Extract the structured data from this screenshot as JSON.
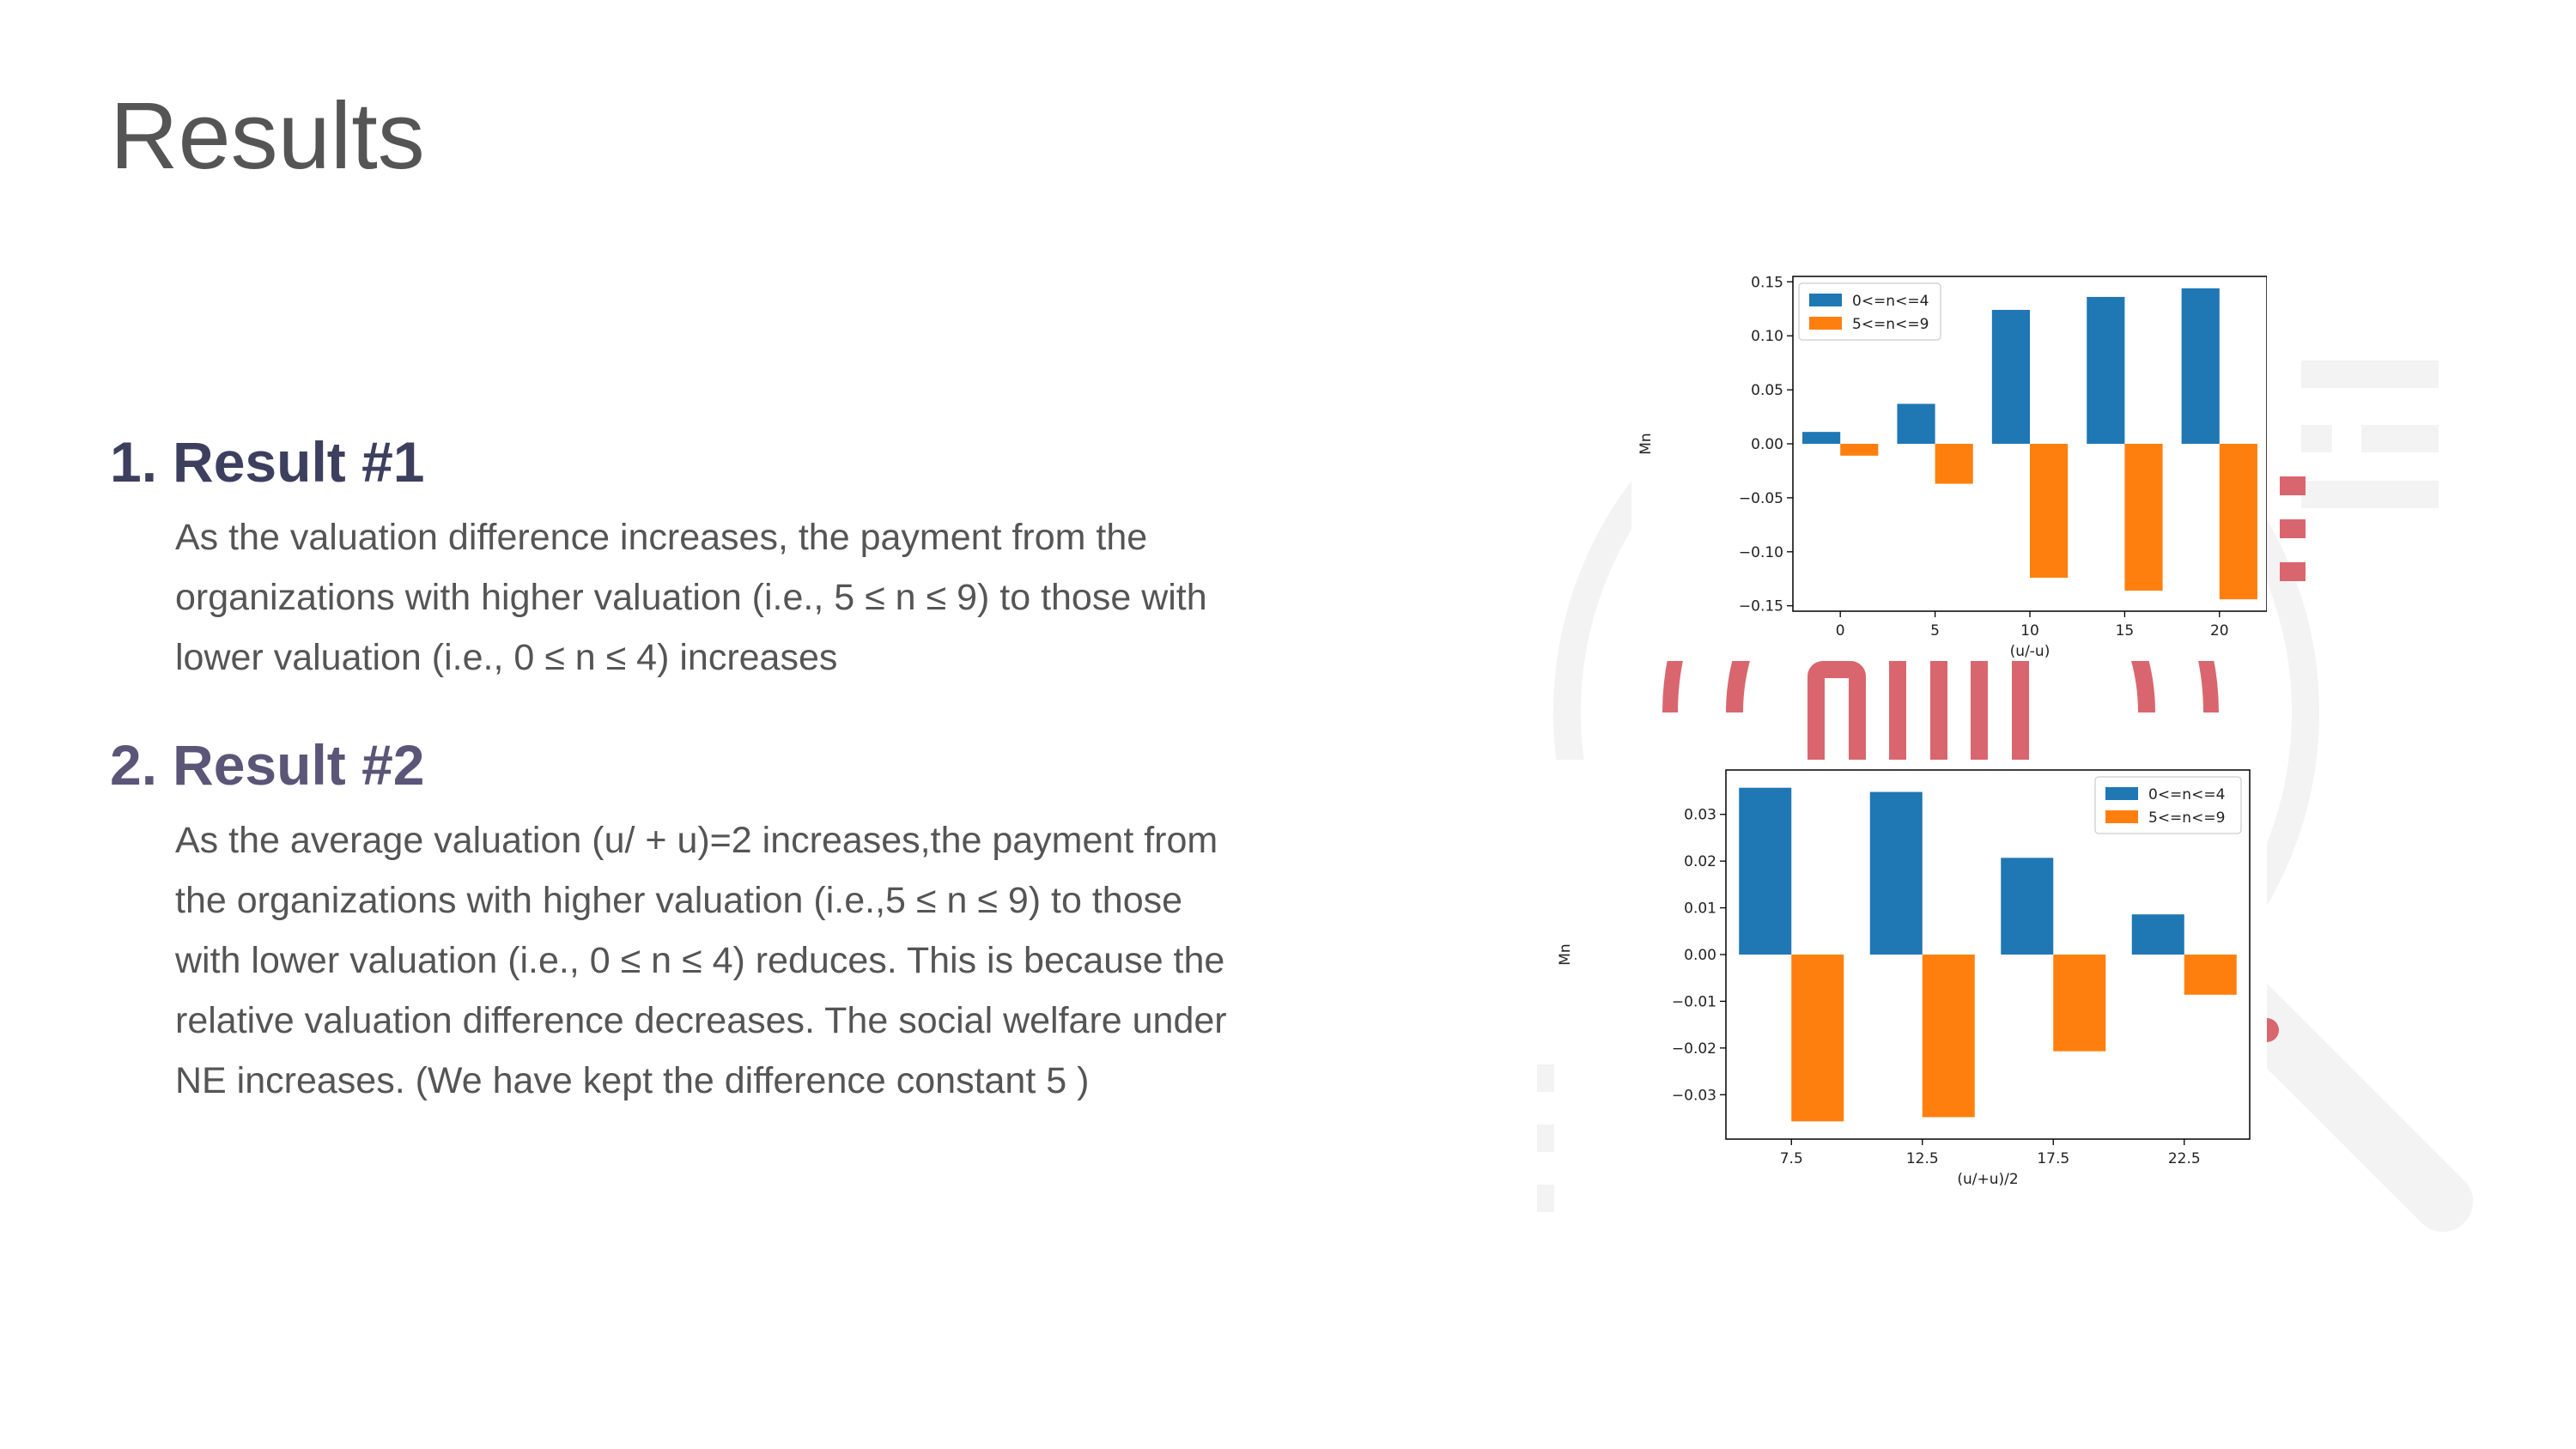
{
  "slide": {
    "title": "Results",
    "results": [
      {
        "number": "1.",
        "heading": "Result #1",
        "body": "As the valuation difference increases, the payment from the organizations with higher valuation (i.e., 5 ≤ n ≤ 9) to those with lower valuation (i.e., 0 ≤ n ≤ 4) increases"
      },
      {
        "number": "2.",
        "heading": "Result #2",
        "body": "As the average valuation (u/ + u)=2 increases,the payment from the organizations with higher valuation (i.e.,5 ≤ n ≤ 9) to those with lower valuation (i.e., 0 ≤ n ≤ 4) reduces. This is because the relative valuation difference decreases. The social welfare under NE increases. (We have kept the difference constant 5 )"
      }
    ]
  },
  "colors": {
    "series_a": "#1f77b4",
    "series_b": "#ff7f0e",
    "title": "#555555",
    "heading_1": "#3d3f5f",
    "heading_2": "#5b5577",
    "bg_red": "#d9666e",
    "bg_gray": "#f3f3f3"
  },
  "chart_data": [
    {
      "type": "bar",
      "title": "",
      "xlabel": "(u/-u)",
      "ylabel": "Mn",
      "categories": [
        "0",
        "5",
        "10",
        "15",
        "20"
      ],
      "series": [
        {
          "name": "0<=n<=4",
          "values": [
            0.011,
            0.037,
            0.124,
            0.136,
            0.144
          ]
        },
        {
          "name": "5<=n<=9",
          "values": [
            -0.011,
            -0.037,
            -0.124,
            -0.136,
            -0.144
          ]
        }
      ],
      "yticks": [
        0.15,
        0.1,
        0.05,
        0.0,
        -0.05,
        -0.1,
        -0.15
      ],
      "ytick_labels": [
        "0.15",
        "0.10",
        "0.05",
        "0.00",
        "−0.05",
        "−0.10",
        "−0.15"
      ],
      "ylim": [
        -0.155,
        0.155
      ],
      "legend": "top-left",
      "grid": false
    },
    {
      "type": "bar",
      "title": "",
      "xlabel": "(u/+u)/2",
      "ylabel": "Mn",
      "categories": [
        "7.5",
        "12.5",
        "17.5",
        "22.5"
      ],
      "series": [
        {
          "name": "0<=n<=4",
          "values": [
            0.0357,
            0.0348,
            0.0207,
            0.0086
          ]
        },
        {
          "name": "5<=n<=9",
          "values": [
            -0.0357,
            -0.0348,
            -0.0207,
            -0.0086
          ]
        }
      ],
      "yticks": [
        0.03,
        0.02,
        0.01,
        0.0,
        -0.01,
        -0.02,
        -0.03
      ],
      "ytick_labels": [
        "0.03",
        "0.02",
        "0.01",
        "0.00",
        "−0.01",
        "−0.02",
        "−0.03"
      ],
      "ylim": [
        -0.0395,
        0.0395
      ],
      "legend": "top-right",
      "grid": false
    }
  ]
}
